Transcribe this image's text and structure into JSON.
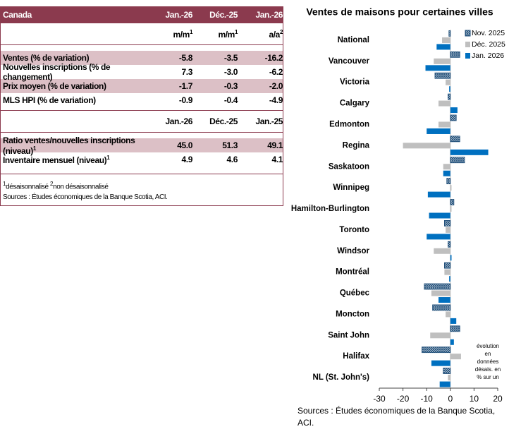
{
  "table": {
    "header": [
      "Canada",
      "Jan.-26",
      "Déc.-25",
      "Jan.-26"
    ],
    "units": [
      {
        "text": "m/m",
        "sup": "1"
      },
      {
        "text": "m/m",
        "sup": "1"
      },
      {
        "text": "a/a",
        "sup": "2"
      }
    ],
    "rows": [
      [
        "Ventes (% de variation)",
        "-5.8",
        "-3.5",
        "-16.2"
      ],
      [
        "Nouvelles inscriptions (% de changement)",
        "7.3",
        "-3.0",
        "-6.2"
      ],
      [
        "Prix moyen (% de variation)",
        "-1.7",
        "-0.3",
        "-2.0"
      ],
      [
        "MLS HPI (% de variation)",
        "-0.9",
        "-0.4",
        "-4.9"
      ]
    ],
    "header2": [
      "Jan.-26",
      "Déc.-25",
      "Jan.-25"
    ],
    "rows2": [
      {
        "label": "Ratio ventes/nouvelles inscriptions (niveau)",
        "sup": "1",
        "values": [
          "45.0",
          "51.3",
          "49.1"
        ]
      },
      {
        "label": "Inventaire mensuel (niveau)",
        "sup": "1",
        "values": [
          "4.9",
          "4.6",
          "4.1"
        ]
      }
    ],
    "footnote": [
      {
        "sup": "1",
        "text": "désaisonnalisé"
      },
      {
        "sup": "2",
        "text": "non désaisonnalisé"
      }
    ],
    "source": "Sources : Études économiques de la Banque Scotia, ACI."
  },
  "chart_data": {
    "type": "hbar",
    "title": "Ventes de maisons pour certaines villes",
    "categories": [
      "National",
      "Vancouver",
      "Victoria",
      "Calgary",
      "Edmonton",
      "Regina",
      "Saskatoon",
      "Winnipeg",
      "Hamilton-Burlington",
      "Toronto",
      "Windsor",
      "Montréal",
      "Québec",
      "Moncton",
      "Saint John",
      "Halifax",
      "NL (St. John's)"
    ],
    "series": [
      {
        "name": "Nov. 2025",
        "color": "#1f4e79",
        "pattern": "hatch",
        "values": [
          -0.6,
          4,
          -6.5,
          -1,
          2.5,
          4,
          6,
          -1.5,
          1.5,
          -2.5,
          -1,
          -2.5,
          -11,
          -7.5,
          4,
          -12,
          -3
        ]
      },
      {
        "name": "Déc. 2025",
        "color": "#bfbfbf",
        "values": [
          -3.5,
          -7,
          -2,
          -5,
          -5,
          -20,
          -3,
          0.5,
          0.5,
          -2,
          -7,
          -2.5,
          -8,
          -2,
          -8.5,
          4.5,
          -1
        ]
      },
      {
        "name": "Jan. 2026",
        "color": "#0070c0",
        "values": [
          -5.8,
          -10.5,
          -0.5,
          3,
          -10,
          16,
          -3,
          -9.5,
          -9,
          -10,
          0.5,
          -0.5,
          -5,
          2.5,
          1.5,
          -8,
          -4.5
        ]
      }
    ],
    "xlim": [
      -30,
      20
    ],
    "xticks": [
      -30,
      -20,
      -10,
      0,
      10,
      20
    ],
    "legend": "top-right",
    "annotation": [
      "évolution",
      "en",
      "données",
      "désais.  en",
      "% sur un"
    ],
    "source": [
      "Sources : Études économiques de la Banque Scotia,",
      "ACI."
    ]
  }
}
